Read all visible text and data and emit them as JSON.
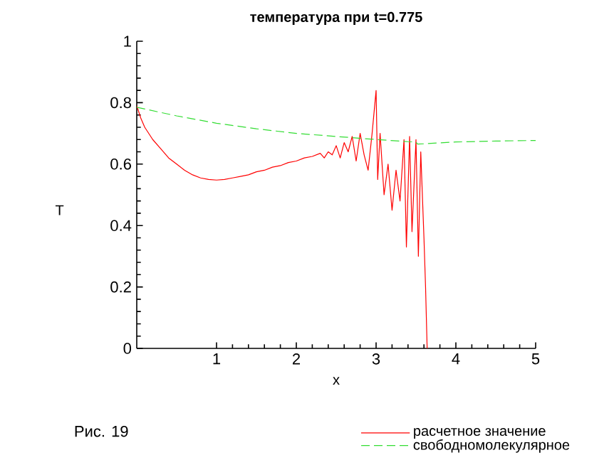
{
  "chart_data": {
    "type": "line",
    "title": "температура при t=0.775",
    "xlabel": "x",
    "ylabel": "T",
    "xlim": [
      0,
      5
    ],
    "ylim": [
      0,
      1
    ],
    "xticks": [
      1,
      2,
      3,
      4,
      5
    ],
    "yticks": [
      0,
      0.2,
      0.4,
      0.6,
      0.8,
      1
    ],
    "legend": "bottom",
    "annotations": [
      "Рис. 19"
    ],
    "series": [
      {
        "name": "расчетное значение",
        "color": "#ff0000",
        "line_style": "solid",
        "x": [
          0,
          0.05,
          0.1,
          0.2,
          0.3,
          0.4,
          0.5,
          0.6,
          0.7,
          0.8,
          0.9,
          1.0,
          1.1,
          1.2,
          1.3,
          1.4,
          1.5,
          1.6,
          1.7,
          1.8,
          1.9,
          2.0,
          2.1,
          2.2,
          2.3,
          2.35,
          2.4,
          2.45,
          2.5,
          2.55,
          2.6,
          2.65,
          2.7,
          2.75,
          2.8,
          2.85,
          2.9,
          2.95,
          3.0,
          3.02,
          3.05,
          3.1,
          3.15,
          3.2,
          3.25,
          3.3,
          3.35,
          3.38,
          3.42,
          3.45,
          3.5,
          3.53,
          3.56,
          3.6,
          3.62,
          3.64
        ],
        "values": [
          0.79,
          0.75,
          0.72,
          0.68,
          0.65,
          0.62,
          0.6,
          0.58,
          0.565,
          0.555,
          0.55,
          0.548,
          0.55,
          0.555,
          0.56,
          0.565,
          0.575,
          0.58,
          0.59,
          0.595,
          0.605,
          0.61,
          0.62,
          0.625,
          0.635,
          0.62,
          0.64,
          0.63,
          0.66,
          0.62,
          0.67,
          0.64,
          0.69,
          0.61,
          0.7,
          0.63,
          0.58,
          0.7,
          0.84,
          0.55,
          0.7,
          0.5,
          0.6,
          0.45,
          0.58,
          0.48,
          0.68,
          0.33,
          0.69,
          0.38,
          0.68,
          0.3,
          0.64,
          0.36,
          0.2,
          0.0
        ]
      },
      {
        "name": "свободномолекулярное",
        "color": "#33dd33",
        "line_style": "dashed",
        "x": [
          0,
          0.5,
          1,
          1.5,
          2,
          2.5,
          3,
          3.4,
          3.5,
          3.52,
          4,
          4.5,
          5
        ],
        "values": [
          0.785,
          0.757,
          0.733,
          0.715,
          0.7,
          0.69,
          0.68,
          0.673,
          0.672,
          0.665,
          0.672,
          0.675,
          0.677
        ]
      }
    ]
  }
}
